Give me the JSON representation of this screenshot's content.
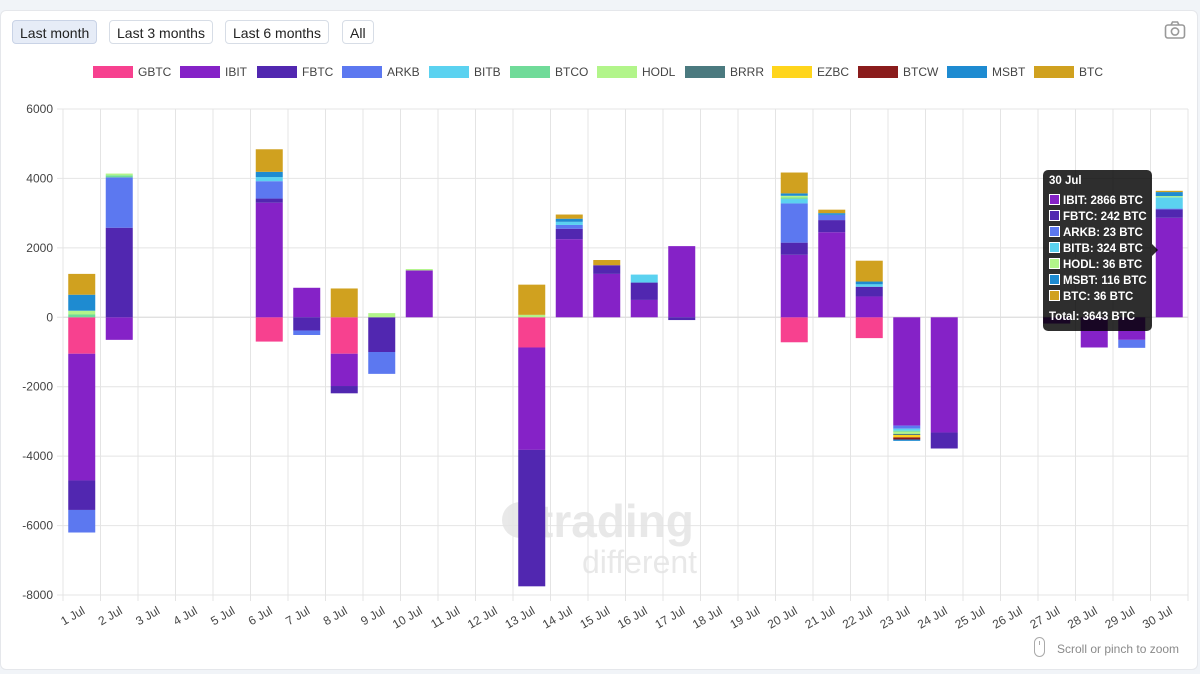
{
  "toolbar": {
    "buttons": [
      "Last month",
      "Last 3 months",
      "Last 6 months",
      "All"
    ],
    "active": "Last month"
  },
  "icons": {
    "camera": "camera-icon",
    "scroll": "mouse-icon"
  },
  "scroll_hint": "Scroll or pinch to zoom",
  "watermark": {
    "line1": "trading",
    "line2": "different"
  },
  "colors": {
    "GBTC": "#f7418f",
    "IBIT": "#8522c7",
    "FBTC": "#5127b0",
    "ARKB": "#5c78f0",
    "BITB": "#5bd2f0",
    "BTCO": "#70db99",
    "HODL": "#b2f58a",
    "BRRR": "#4b7a7f",
    "EZBC": "#ffd51c",
    "BTCW": "#8a1c1c",
    "MSBT": "#1e8bd1",
    "BTC": "#d0a11f"
  },
  "chart_data": {
    "type": "bar",
    "stacked": true,
    "legend_position": "top",
    "grid": true,
    "ylim": [
      -8000,
      6000
    ],
    "yticks": [
      "6000",
      "4000",
      "2000",
      "0",
      "-2000",
      "-4000",
      "-6000",
      "-8000"
    ],
    "categories": [
      "1 Jul",
      "2 Jul",
      "3 Jul",
      "4 Jul",
      "5 Jul",
      "6 Jul",
      "7 Jul",
      "8 Jul",
      "9 Jul",
      "10 Jul",
      "11 Jul",
      "12 Jul",
      "13 Jul",
      "14 Jul",
      "15 Jul",
      "16 Jul",
      "17 Jul",
      "18 Jul",
      "19 Jul",
      "20 Jul",
      "21 Jul",
      "22 Jul",
      "23 Jul",
      "24 Jul",
      "25 Jul",
      "26 Jul",
      "27 Jul",
      "28 Jul",
      "29 Jul",
      "30 Jul"
    ],
    "series": [
      {
        "name": "GBTC",
        "values": [
          -1050,
          0,
          0,
          0,
          0,
          -700,
          0,
          -1050,
          0,
          0,
          0,
          0,
          -870,
          0,
          0,
          0,
          0,
          0,
          0,
          -720,
          0,
          -600,
          0,
          0,
          0,
          0,
          0,
          0,
          0,
          0
        ]
      },
      {
        "name": "IBIT",
        "values": [
          -3650,
          -650,
          0,
          0,
          0,
          3300,
          850,
          -930,
          0,
          1350,
          0,
          0,
          -2950,
          2250,
          1250,
          500,
          2050,
          0,
          0,
          1800,
          2450,
          600,
          -3120,
          -3320,
          0,
          0,
          -180,
          -870,
          -650,
          2866
        ]
      },
      {
        "name": "FBTC",
        "values": [
          -850,
          2580,
          0,
          0,
          0,
          120,
          -380,
          -210,
          -1000,
          0,
          0,
          0,
          -3930,
          300,
          250,
          500,
          -80,
          0,
          0,
          350,
          350,
          280,
          0,
          -460,
          0,
          0,
          0,
          0,
          0,
          242
        ]
      },
      {
        "name": "ARKB",
        "values": [
          -650,
          1450,
          0,
          0,
          0,
          500,
          -130,
          0,
          -630,
          0,
          0,
          0,
          0,
          110,
          0,
          0,
          0,
          0,
          0,
          1130,
          150,
          0,
          -90,
          0,
          0,
          0,
          0,
          0,
          -230,
          23
        ]
      },
      {
        "name": "BITB",
        "values": [
          0,
          0,
          0,
          0,
          0,
          120,
          0,
          0,
          0,
          0,
          0,
          0,
          0,
          90,
          0,
          230,
          0,
          0,
          0,
          130,
          0,
          70,
          -60,
          0,
          0,
          0,
          0,
          0,
          0,
          324
        ]
      },
      {
        "name": "BTCO",
        "values": [
          80,
          60,
          0,
          0,
          0,
          0,
          0,
          0,
          0,
          0,
          0,
          0,
          0,
          0,
          0,
          0,
          0,
          0,
          0,
          40,
          0,
          0,
          -30,
          0,
          0,
          0,
          0,
          0,
          0,
          0
        ]
      },
      {
        "name": "HODL",
        "values": [
          110,
          50,
          0,
          0,
          0,
          0,
          0,
          0,
          120,
          40,
          0,
          0,
          70,
          0,
          0,
          0,
          0,
          0,
          0,
          50,
          0,
          0,
          -60,
          0,
          0,
          0,
          0,
          0,
          0,
          36
        ]
      },
      {
        "name": "BRRR",
        "values": [
          0,
          0,
          0,
          0,
          0,
          0,
          0,
          0,
          0,
          0,
          0,
          0,
          0,
          0,
          0,
          0,
          0,
          0,
          0,
          0,
          0,
          0,
          -30,
          0,
          0,
          0,
          0,
          0,
          0,
          0
        ]
      },
      {
        "name": "EZBC",
        "values": [
          0,
          0,
          0,
          0,
          0,
          0,
          0,
          0,
          0,
          0,
          0,
          0,
          0,
          0,
          0,
          0,
          0,
          0,
          0,
          0,
          0,
          0,
          -70,
          0,
          0,
          0,
          0,
          0,
          0,
          0
        ]
      },
      {
        "name": "BTCW",
        "values": [
          0,
          0,
          0,
          0,
          0,
          0,
          0,
          0,
          0,
          0,
          0,
          0,
          0,
          0,
          0,
          0,
          0,
          0,
          0,
          0,
          0,
          0,
          -60,
          0,
          0,
          0,
          0,
          0,
          0,
          0
        ]
      },
      {
        "name": "MSBT",
        "values": [
          460,
          0,
          0,
          0,
          0,
          150,
          0,
          0,
          0,
          0,
          0,
          0,
          0,
          90,
          0,
          0,
          0,
          0,
          0,
          70,
          50,
          80,
          -40,
          0,
          0,
          0,
          0,
          0,
          0,
          116
        ]
      },
      {
        "name": "BTC",
        "values": [
          600,
          0,
          0,
          0,
          0,
          650,
          0,
          830,
          0,
          0,
          0,
          0,
          870,
          120,
          150,
          0,
          0,
          0,
          0,
          600,
          100,
          600,
          0,
          0,
          0,
          0,
          0,
          0,
          0,
          36
        ]
      }
    ],
    "tooltip": {
      "title": "30 Jul",
      "rows": [
        {
          "series": "IBIT",
          "text": "IBIT: 2866 BTC"
        },
        {
          "series": "FBTC",
          "text": "FBTC: 242 BTC"
        },
        {
          "series": "ARKB",
          "text": "ARKB: 23 BTC"
        },
        {
          "series": "BITB",
          "text": "BITB: 324 BTC"
        },
        {
          "series": "HODL",
          "text": "HODL: 36 BTC"
        },
        {
          "series": "MSBT",
          "text": "MSBT: 116 BTC"
        },
        {
          "series": "BTC",
          "text": "BTC: 36 BTC"
        }
      ],
      "total": "Total: 3643 BTC"
    }
  }
}
